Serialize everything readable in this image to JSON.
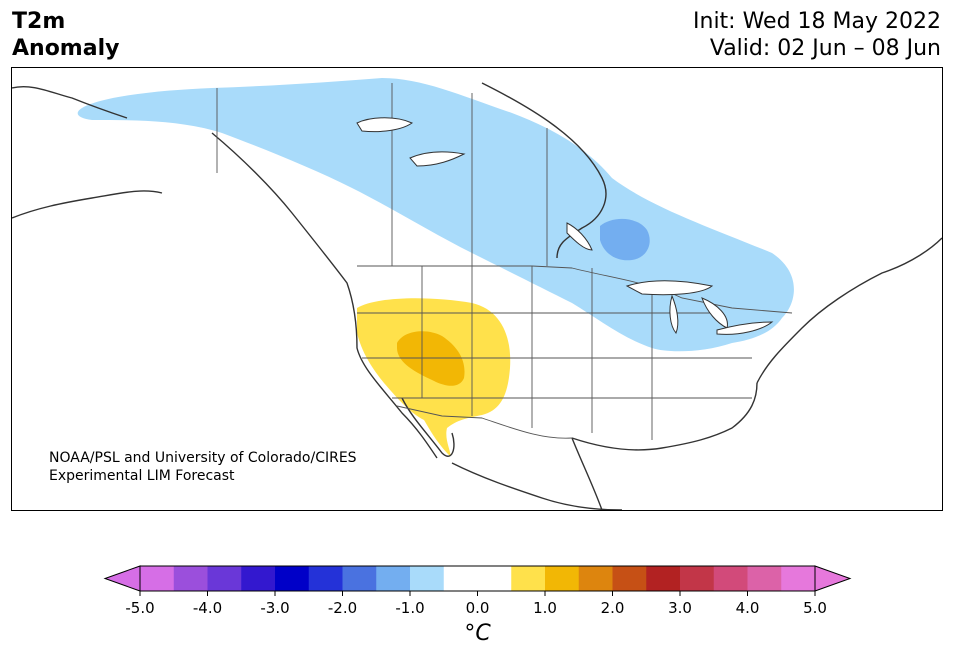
{
  "title": {
    "line1": "T2m",
    "line2": "Anomaly"
  },
  "info": {
    "init": "Init: Wed 18 May 2022",
    "valid": "Valid: 02 Jun – 08 Jun"
  },
  "credit": {
    "line1": "NOAA/PSL and University of Colorado/CIRES",
    "line2": "Experimental LIM Forecast"
  },
  "colorbar": {
    "unit_label": "°C",
    "under_color": "#d66ee6",
    "over_color": "#e678dc",
    "bins": [
      {
        "lo": -5.0,
        "hi": -4.5,
        "color": "#d66ee6"
      },
      {
        "lo": -4.5,
        "hi": -4.0,
        "color": "#9b4fdc"
      },
      {
        "lo": -4.0,
        "hi": -3.5,
        "color": "#6a37d8"
      },
      {
        "lo": -3.5,
        "hi": -3.0,
        "color": "#3318cf"
      },
      {
        "lo": -3.0,
        "hi": -2.5,
        "color": "#0000c8"
      },
      {
        "lo": -2.5,
        "hi": -2.0,
        "color": "#2432d8"
      },
      {
        "lo": -2.0,
        "hi": -1.5,
        "color": "#4a72e0"
      },
      {
        "lo": -1.5,
        "hi": -1.0,
        "color": "#73aef0"
      },
      {
        "lo": -1.0,
        "hi": -0.5,
        "color": "#a9dbfa"
      },
      {
        "lo": -0.5,
        "hi": 0.5,
        "color": "#ffffff"
      },
      {
        "lo": 0.5,
        "hi": 1.0,
        "color": "#ffe14b"
      },
      {
        "lo": 1.0,
        "hi": 1.5,
        "color": "#f2b705"
      },
      {
        "lo": 1.5,
        "hi": 2.0,
        "color": "#dd850e"
      },
      {
        "lo": 2.0,
        "hi": 2.5,
        "color": "#c65015"
      },
      {
        "lo": 2.5,
        "hi": 3.0,
        "color": "#b22222"
      },
      {
        "lo": 3.0,
        "hi": 3.5,
        "color": "#c23648"
      },
      {
        "lo": 3.5,
        "hi": 4.0,
        "color": "#d24a7a"
      },
      {
        "lo": 4.0,
        "hi": 4.5,
        "color": "#dc62a8"
      },
      {
        "lo": 4.5,
        "hi": 5.0,
        "color": "#e678dc"
      }
    ],
    "ticks": [
      "-5.0",
      "-4.0",
      "-3.0",
      "-2.0",
      "-1.0",
      "0.0",
      "1.0",
      "2.0",
      "3.0",
      "4.0",
      "5.0"
    ],
    "tick_values": [
      -5,
      -4,
      -3,
      -2,
      -1,
      0,
      1,
      2,
      3,
      4,
      5
    ]
  },
  "anomaly_regions": [
    {
      "name": "cool-anomaly-north",
      "value_range": "-1.0 to -0.5",
      "color": "#a9dbfa"
    },
    {
      "name": "cool-anomaly-core",
      "value_range": "-1.5 to -1.0",
      "color": "#73aef0"
    },
    {
      "name": "warm-anomaly-southwest",
      "value_range": "0.5 to 1.0",
      "color": "#ffe14b"
    },
    {
      "name": "warm-anomaly-core",
      "value_range": "1.0 to 1.5",
      "color": "#f2b705"
    }
  ]
}
